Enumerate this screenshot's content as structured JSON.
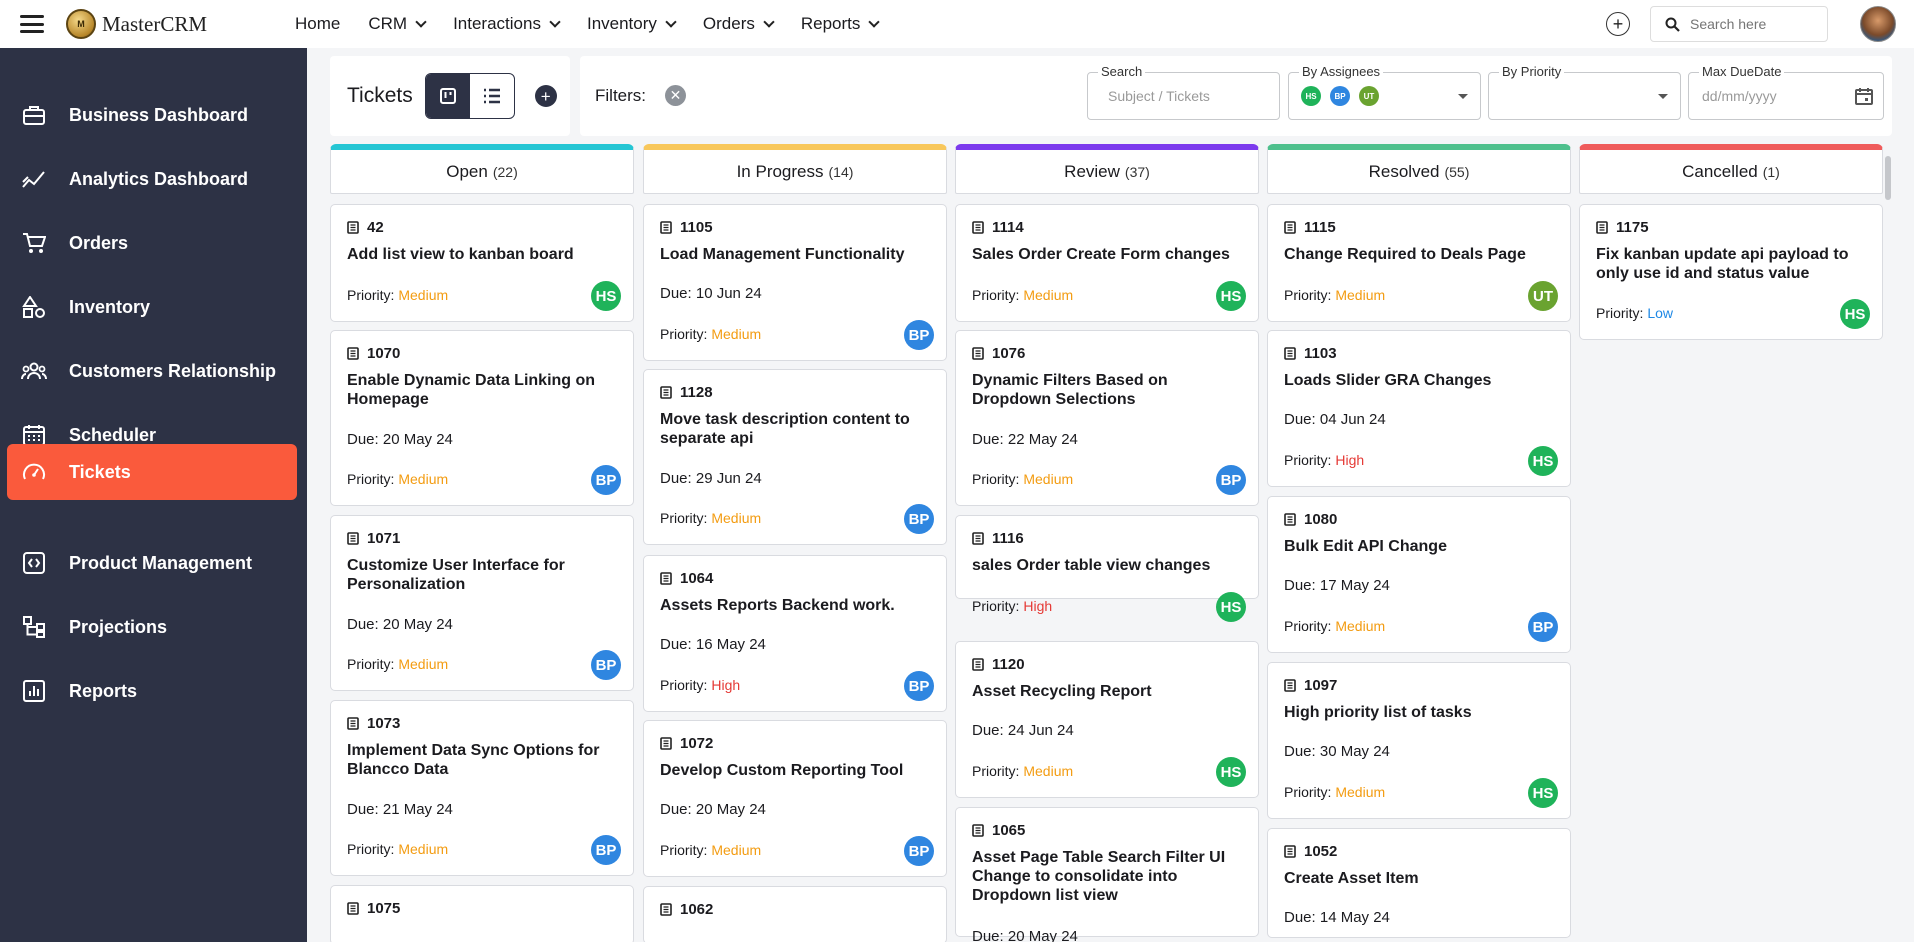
{
  "app": {
    "title": "MasterCRM",
    "logo_mark": "M"
  },
  "topnav": [
    {
      "label": "Home",
      "dropdown": false
    },
    {
      "label": "CRM",
      "dropdown": true
    },
    {
      "label": "Interactions",
      "dropdown": true
    },
    {
      "label": "Inventory",
      "dropdown": true
    },
    {
      "label": "Orders",
      "dropdown": true
    },
    {
      "label": "Reports",
      "dropdown": true
    }
  ],
  "search": {
    "placeholder": "Search here"
  },
  "sidebar": {
    "items": [
      {
        "label": "Business Dashboard",
        "icon": "briefcase-icon",
        "active": false
      },
      {
        "label": "Analytics Dashboard",
        "icon": "trend-chart-icon",
        "active": false
      },
      {
        "label": "Orders",
        "icon": "cart-icon",
        "active": false
      },
      {
        "label": "Inventory",
        "icon": "shapes-icon",
        "active": false
      },
      {
        "label": "Customers Relationship",
        "icon": "people-icon",
        "active": false
      },
      {
        "label": "Scheduler",
        "icon": "calendar-icon",
        "active": false
      },
      {
        "label": "Tickets",
        "icon": "gauge-icon",
        "active": true
      },
      {
        "label": "Product Management",
        "icon": "code-box-icon",
        "active": false
      },
      {
        "label": "Projections",
        "icon": "hierarchy-icon",
        "active": false
      },
      {
        "label": "Reports",
        "icon": "bar-report-icon",
        "active": false
      }
    ]
  },
  "header": {
    "title": "Tickets"
  },
  "filters": {
    "label": "Filters:",
    "search_label": "Search",
    "search_placeholder": "Subject / Tickets",
    "assignees_label": "By Assignees",
    "assignees": [
      "HS",
      "BP",
      "UT"
    ],
    "priority_label": "By Priority",
    "duedate_label": "Max DueDate",
    "duedate_placeholder": "dd/mm/yyyy"
  },
  "colors": {
    "Open": "#25c6d4",
    "In Progress": "#f8c75b",
    "Review": "#7c3aed",
    "Resolved": "#4ec08d",
    "Cancelled": "#ef5b5b",
    "Medium": "#f39c12",
    "High": "#e53935",
    "Low": "#1e88e5",
    "HS": "#1fb35a",
    "BP": "#2f86e0",
    "UT": "#6aa330"
  },
  "priority_prefix": "Priority:",
  "columns": [
    {
      "name": "Open",
      "count": "(22)",
      "cards": [
        {
          "id": "42",
          "title": "Add list view to kanban board",
          "due": "",
          "priority": "Medium",
          "assignee": "HS"
        },
        {
          "id": "1070",
          "title": "Enable Dynamic Data Linking on Homepage",
          "due": "Due: 20 May 24",
          "priority": "Medium",
          "assignee": "BP"
        },
        {
          "id": "1071",
          "title": "Customize User Interface for Personalization",
          "due": "Due: 20 May 24",
          "priority": "Medium",
          "assignee": "BP"
        },
        {
          "id": "1073",
          "title": "Implement Data Sync Options for Blancco Data",
          "due": "Due: 21 May 24",
          "priority": "Medium",
          "assignee": "BP"
        },
        {
          "id": "1075",
          "title": "",
          "due": "",
          "priority": "",
          "assignee": ""
        }
      ]
    },
    {
      "name": "In Progress",
      "count": "(14)",
      "cards": [
        {
          "id": "1105",
          "title": "Load Management Functionality",
          "due": "Due: 10 Jun 24",
          "priority": "Medium",
          "assignee": "BP"
        },
        {
          "id": "1128",
          "title": "Move task description content to separate api",
          "due": "Due: 29 Jun 24",
          "priority": "Medium",
          "assignee": "BP"
        },
        {
          "id": "1064",
          "title": "Assets Reports Backend work.",
          "due": "Due: 16 May 24",
          "priority": "High",
          "assignee": "BP"
        },
        {
          "id": "1072",
          "title": "Develop Custom Reporting Tool",
          "due": "Due: 20 May 24",
          "priority": "Medium",
          "assignee": "BP"
        },
        {
          "id": "1062",
          "title": "",
          "due": "",
          "priority": "",
          "assignee": ""
        }
      ]
    },
    {
      "name": "Review",
      "count": "(37)",
      "cards": [
        {
          "id": "1114",
          "title": "Sales Order Create Form changes",
          "due": "",
          "priority": "Medium",
          "assignee": "HS"
        },
        {
          "id": "1076",
          "title": "Dynamic Filters Based on Dropdown Selections",
          "due": "Due: 22 May 24",
          "priority": "Medium",
          "assignee": "BP"
        },
        {
          "id": "1116",
          "title": "sales Order table view changes",
          "due": "",
          "priority": "High",
          "assignee": "HS"
        },
        {
          "id": "1120",
          "title": "Asset Recycling Report",
          "due": "Due: 24 Jun 24",
          "priority": "Medium",
          "assignee": "HS"
        },
        {
          "id": "1065",
          "title": "Asset Page Table Search Filter UI Change to consolidate into Dropdown list view",
          "due": "Due: 20 May 24",
          "priority": "",
          "assignee": ""
        }
      ]
    },
    {
      "name": "Resolved",
      "count": "(55)",
      "cards": [
        {
          "id": "1115",
          "title": "Change Required to Deals Page",
          "due": "",
          "priority": "Medium",
          "assignee": "UT"
        },
        {
          "id": "1103",
          "title": "Loads Slider GRA Changes",
          "due": "Due: 04 Jun 24",
          "priority": "High",
          "assignee": "HS"
        },
        {
          "id": "1080",
          "title": "Bulk Edit API Change",
          "due": "Due: 17 May 24",
          "priority": "Medium",
          "assignee": "BP"
        },
        {
          "id": "1097",
          "title": "High priority list of tasks",
          "due": "Due: 30 May 24",
          "priority": "Medium",
          "assignee": "HS"
        },
        {
          "id": "1052",
          "title": "Create Asset Item",
          "due": "Due: 14 May 24",
          "priority": "",
          "assignee": ""
        }
      ]
    },
    {
      "name": "Cancelled",
      "count": "(1)",
      "cards": [
        {
          "id": "1175",
          "title": "Fix kanban update api payload to only use id and status value",
          "due": "",
          "priority": "Low",
          "assignee": "HS"
        }
      ]
    }
  ]
}
